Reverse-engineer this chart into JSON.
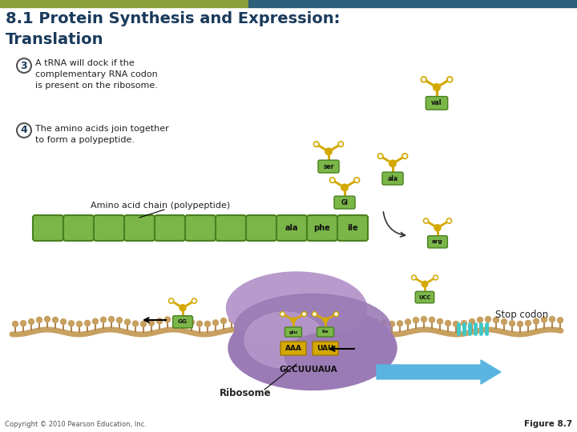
{
  "title_line1": "8.1 Protein Synthesis and Expression:",
  "title_line2": "Translation",
  "title_color": "#1a3a5c",
  "bg_color": "#ffffff",
  "header_bar_color1": "#8b9e3a",
  "header_bar_color2": "#2c5f7a",
  "step3_text": "A tRNA will dock if the\ncomplementary RNA codon\nis present on the ribosome.",
  "step4_text": "The amino acids join together\nto form a polypeptide.",
  "amino_chain_label": "Amino acid chain (polypeptide)",
  "ribosome_label": "Ribosome",
  "stop_codon_label": "Stop codon",
  "mrna_seq": "GCCUUUAUA",
  "codons": [
    "AAA",
    "UAU"
  ],
  "copyright": "Copyright © 2010 Pearson Education, Inc.",
  "figure_label": "Figure 8.7",
  "green_color": "#7ab648",
  "dark_green": "#4a8020",
  "yellow_gold": "#d4a800",
  "dark_gold": "#a07800",
  "purple_ribosome": "#9b7bb5",
  "light_purple": "#b89acc",
  "mrna_color": "#c8a060",
  "mrna_spike_color": "#a07030",
  "cyan_stop": "#40c8c8",
  "chain_labels": [
    "ala",
    "phe",
    "ile"
  ],
  "arrow_blue": "#5ab4e0",
  "text_dark": "#222222",
  "gray_text": "#555555"
}
